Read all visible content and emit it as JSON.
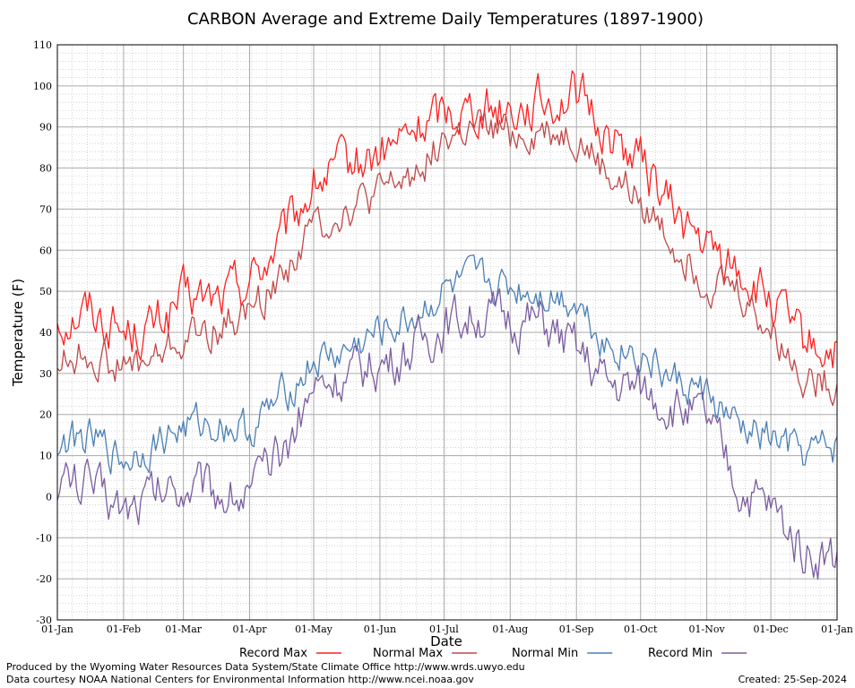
{
  "chart_data": {
    "type": "line",
    "title": "CARBON Average and Extreme Daily Temperatures (1897-1900)",
    "xlabel": "Date",
    "ylabel": "Temperature (F)",
    "ylim": [
      -30,
      110
    ],
    "y_ticks": [
      110,
      100,
      90,
      80,
      70,
      60,
      50,
      40,
      30,
      20,
      10,
      0,
      -10,
      -20,
      -30
    ],
    "x_ticks": [
      "01-Jan",
      "01-Feb",
      "01-Mar",
      "01-Apr",
      "01-May",
      "01-Jun",
      "01-Jul",
      "01-Aug",
      "01-Sep",
      "01-Oct",
      "01-Nov",
      "01-Dec",
      "01-Jan"
    ],
    "grid": true,
    "legend_position": "bottom",
    "colors": {
      "record_max": "#ff2020",
      "normal_max": "#c04848",
      "normal_min": "#4a7fb5",
      "record_min": "#7a5ca0",
      "grid_major": "#aaaaaa",
      "grid_minor": "#bbbbbb"
    },
    "series_anchor_days": [
      0,
      15,
      31,
      45,
      59,
      75,
      90,
      105,
      120,
      135,
      151,
      165,
      181,
      196,
      212,
      227,
      243,
      258,
      273,
      288,
      304,
      319,
      334,
      349,
      364
    ],
    "series": [
      {
        "name": "Record Max",
        "key": "record_max",
        "noise": 5,
        "values": [
          43,
          46,
          40,
          41,
          48,
          48,
          53,
          62,
          76,
          80,
          83,
          88,
          94,
          95,
          95,
          96,
          98,
          88,
          82,
          70,
          60,
          55,
          47,
          37,
          35
        ]
      },
      {
        "name": "Normal Max",
        "key": "normal_max",
        "noise": 4,
        "values": [
          33,
          35,
          31,
          33,
          38,
          41,
          45,
          54,
          66,
          70,
          73,
          78,
          87,
          89,
          88,
          89,
          88,
          78,
          72,
          62,
          53,
          50,
          40,
          30,
          28
        ]
      },
      {
        "name": "Normal Min",
        "key": "normal_min",
        "noise": 4,
        "values": [
          13,
          14,
          9,
          13,
          17,
          18,
          16,
          24,
          33,
          35,
          40,
          43,
          50,
          52,
          51,
          50,
          48,
          37,
          35,
          28,
          25,
          16,
          14,
          10,
          12
        ]
      },
      {
        "name": "Record Min",
        "key": "record_min",
        "noise": 5,
        "values": [
          4,
          3,
          -3,
          1,
          3,
          2,
          0,
          10,
          27,
          29,
          32,
          35,
          42,
          44,
          43,
          42,
          35,
          27,
          26,
          22,
          18,
          2,
          -3,
          -13,
          -15
        ]
      }
    ]
  },
  "footer": {
    "produced_by": "Produced by the Wyoming Water Resources Data System/State Climate Office http://www.wrds.uwyo.edu",
    "data_courtesy": "Data courtesy NOAA National Centers for Environmental Information http://www.ncei.noaa.gov",
    "created": "Created:  25-Sep-2024"
  }
}
